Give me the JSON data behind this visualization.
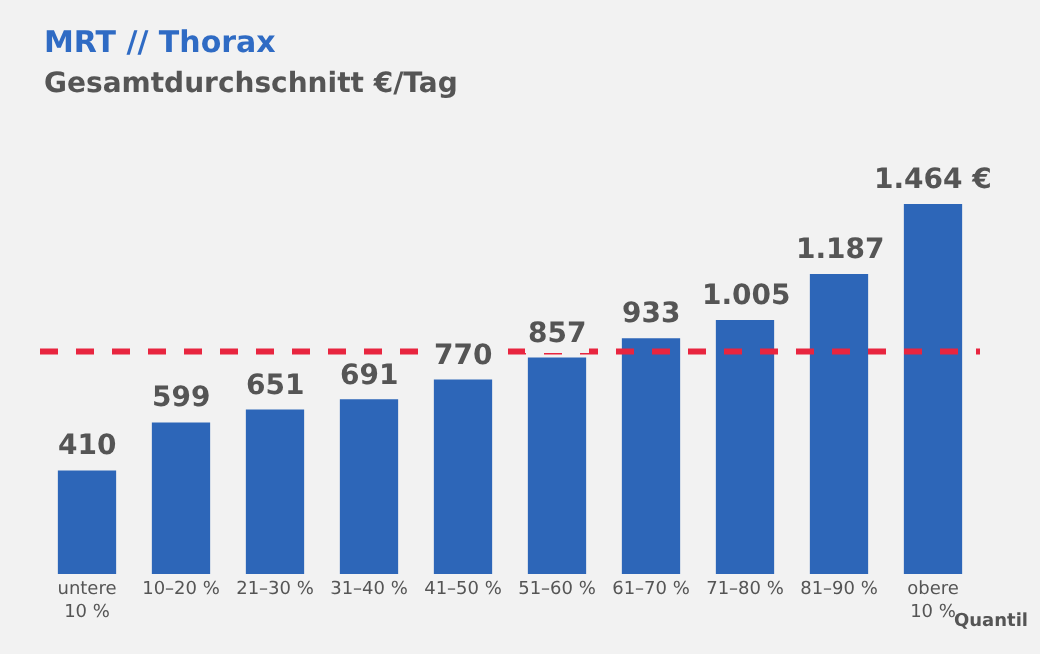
{
  "chart_data": {
    "type": "bar",
    "title": "MRT // Thorax",
    "subtitle": "Gesamtdurchschnitt €/Tag",
    "xlabel": "Quantil",
    "categories": [
      "untere\n10 %",
      "10–20 %",
      "21–30 %",
      "31–40 %",
      "41–50 %",
      "51–60 %",
      "61–70 %",
      "71–80 %",
      "81–90 %",
      "obere\n10 %"
    ],
    "values": [
      410,
      599,
      651,
      691,
      770,
      857,
      933,
      1005,
      1187,
      1464
    ],
    "value_labels": [
      "410",
      "599",
      "651",
      "691",
      "770",
      "857",
      "933",
      "1.005",
      "1.187",
      "1.464 €"
    ],
    "color": "#2d66b8",
    "tick_labels": "x",
    "legend": false,
    "grid": false,
    "ref_lines": [
      {
        "axis": "y",
        "value": 880,
        "color": "#e8253f",
        "line_style": "dashed"
      }
    ]
  }
}
